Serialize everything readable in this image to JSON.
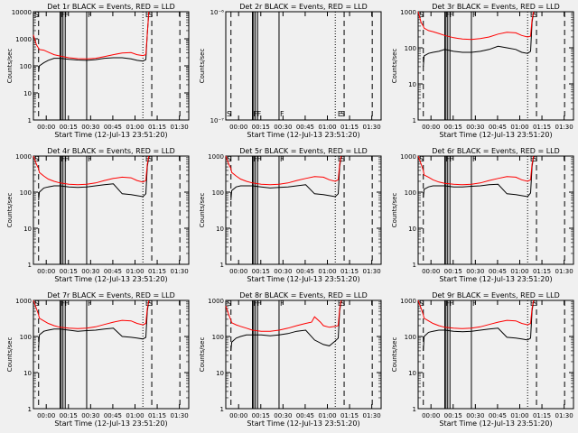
{
  "chart_data": {
    "type": "line",
    "ylabel": "Counts/sec",
    "xlabel": "Start Time (12-Jul-13 23:51:20)",
    "x_ticks": [
      "00:00",
      "00:15",
      "00:30",
      "00:45",
      "01:00",
      "01:15",
      "01:30"
    ],
    "x_tick_minutes": [
      8.67,
      23.67,
      38.67,
      53.67,
      68.67,
      83.67,
      98.67
    ],
    "x_range_minutes": [
      0,
      105
    ],
    "y_scale": "log",
    "series_colors": {
      "events": "#000000",
      "lld": "#ff0000"
    },
    "markers": {
      "dashed": [
        3.5,
        80,
        99
      ],
      "dotted": [
        74
      ],
      "solid": [
        18,
        18.8,
        20,
        21.5,
        36
      ],
      "flags": [
        {
          "x": 0,
          "text": "S"
        },
        {
          "x": 18,
          "text": "F"
        },
        {
          "x": 20.5,
          "text": "F"
        },
        {
          "x": 36,
          "text": "F"
        },
        {
          "x": 75,
          "text": "E"
        },
        {
          "x": 77,
          "text": "S"
        }
      ]
    },
    "panels": [
      {
        "title": "Det 1r BLACK = Events, RED = LLD",
        "ylim": [
          1,
          10000
        ],
        "y_ticks": [
          1,
          10,
          100,
          1000,
          10000
        ],
        "y_tick_labels": [
          "1",
          "10",
          "100",
          "1000",
          "10000"
        ],
        "series": [
          {
            "name": "Events",
            "color": "#000000",
            "x": [
              3.5,
              4,
              7,
              10,
              14,
              18,
              24,
              30,
              36,
              42,
              48,
              54,
              60,
              66,
              70,
              74,
              76,
              77,
              78
            ],
            "y": [
              60,
              100,
              130,
              160,
              190,
              190,
              175,
              165,
              160,
              170,
              190,
              200,
              200,
              180,
              160,
              150,
              170,
              1500,
              10000
            ]
          },
          {
            "name": "LLD",
            "color": "#ff0000",
            "x": [
              0,
              2,
              3.5,
              4,
              7,
              10,
              14,
              18,
              24,
              30,
              36,
              42,
              48,
              54,
              60,
              66,
              70,
              74,
              76,
              77,
              78
            ],
            "y": [
              1400,
              600,
              450,
              400,
              380,
              320,
              260,
              230,
              200,
              185,
              180,
              190,
              220,
              260,
              300,
              310,
              260,
              240,
              260,
              1500,
              10000
            ]
          }
        ]
      },
      {
        "title": "Det 2r BLACK = Events, RED = LLD",
        "ylim": [
          1e-07,
          1e-06
        ],
        "y_ticks": [
          1e-07,
          1e-06
        ],
        "y_tick_labels": [
          "10⁻⁷",
          "10⁻⁶"
        ],
        "series": []
      },
      {
        "title": "Det 3r BLACK = Events, RED = LLD",
        "ylim": [
          1,
          1000
        ],
        "y_ticks": [
          1,
          10,
          100,
          1000
        ],
        "y_tick_labels": [
          "1",
          "10",
          "100",
          "1000"
        ],
        "series": [
          {
            "name": "Events",
            "color": "#000000",
            "x": [
              3.5,
              4,
              7,
              10,
              14,
              18,
              24,
              30,
              36,
              42,
              48,
              54,
              60,
              66,
              70,
              74,
              76,
              77,
              78
            ],
            "y": [
              30,
              60,
              70,
              75,
              80,
              90,
              80,
              75,
              75,
              80,
              90,
              110,
              100,
              90,
              75,
              70,
              80,
              500,
              1000
            ]
          },
          {
            "name": "LLD",
            "color": "#ff0000",
            "x": [
              0,
              2,
              3.5,
              4,
              7,
              10,
              14,
              18,
              24,
              30,
              36,
              42,
              48,
              54,
              60,
              66,
              70,
              74,
              76,
              77,
              78
            ],
            "y": [
              1000,
              500,
              400,
              350,
              300,
              280,
              250,
              220,
              190,
              175,
              170,
              180,
              200,
              240,
              270,
              260,
              220,
              200,
              210,
              600,
              1000
            ]
          }
        ]
      },
      {
        "title": "Det 4r BLACK = Events, RED = LLD",
        "ylim": [
          1,
          1000
        ],
        "y_ticks": [
          1,
          10,
          100,
          1000
        ],
        "y_tick_labels": [
          "1",
          "10",
          "100",
          "1000"
        ],
        "series": [
          {
            "name": "Events",
            "color": "#000000",
            "x": [
              3.5,
              4,
              7,
              10,
              14,
              18,
              24,
              30,
              36,
              42,
              48,
              54,
              60,
              66,
              70,
              74,
              76,
              77,
              78
            ],
            "y": [
              60,
              100,
              130,
              140,
              150,
              150,
              140,
              135,
              140,
              150,
              160,
              170,
              90,
              85,
              80,
              75,
              90,
              500,
              1000
            ]
          },
          {
            "name": "LLD",
            "color": "#ff0000",
            "x": [
              0,
              2,
              3.5,
              4,
              7,
              10,
              14,
              18,
              24,
              30,
              36,
              42,
              48,
              54,
              60,
              66,
              70,
              74,
              76,
              77,
              78
            ],
            "y": [
              1000,
              600,
              450,
              350,
              280,
              230,
              200,
              180,
              165,
              160,
              165,
              180,
              210,
              240,
              260,
              250,
              210,
              190,
              210,
              600,
              1000
            ]
          }
        ]
      },
      {
        "title": "Det 5r BLACK = Events, RED = LLD",
        "ylim": [
          1,
          1000
        ],
        "y_ticks": [
          1,
          10,
          100,
          1000
        ],
        "y_tick_labels": [
          "1",
          "10",
          "100",
          "1000"
        ],
        "series": [
          {
            "name": "Events",
            "color": "#000000",
            "x": [
              3.5,
              4,
              7,
              10,
              14,
              18,
              24,
              30,
              36,
              42,
              48,
              54,
              60,
              66,
              70,
              74,
              76,
              77,
              78
            ],
            "y": [
              60,
              110,
              140,
              150,
              150,
              150,
              140,
              130,
              135,
              140,
              150,
              160,
              90,
              85,
              80,
              75,
              90,
              500,
              1000
            ]
          },
          {
            "name": "LLD",
            "color": "#ff0000",
            "x": [
              0,
              2,
              3.5,
              4,
              7,
              10,
              14,
              18,
              24,
              30,
              36,
              42,
              48,
              54,
              60,
              66,
              70,
              74,
              76,
              77,
              78
            ],
            "y": [
              1000,
              600,
              450,
              350,
              280,
              230,
              200,
              180,
              165,
              160,
              165,
              180,
              210,
              240,
              270,
              260,
              220,
              200,
              220,
              600,
              1000
            ]
          }
        ]
      },
      {
        "title": "Det 6r BLACK = Events, RED = LLD",
        "ylim": [
          1,
          1000
        ],
        "y_ticks": [
          1,
          10,
          100,
          1000
        ],
        "y_tick_labels": [
          "1",
          "10",
          "100",
          "1000"
        ],
        "series": [
          {
            "name": "Events",
            "color": "#000000",
            "x": [
              3.5,
              4,
              7,
              10,
              14,
              18,
              24,
              30,
              36,
              42,
              48,
              54,
              60,
              66,
              70,
              74,
              76,
              77,
              78
            ],
            "y": [
              70,
              120,
              140,
              150,
              150,
              150,
              140,
              140,
              145,
              150,
              160,
              165,
              90,
              85,
              80,
              75,
              95,
              500,
              1000
            ]
          },
          {
            "name": "LLD",
            "color": "#ff0000",
            "x": [
              0,
              2,
              3.5,
              4,
              7,
              10,
              14,
              18,
              24,
              30,
              36,
              42,
              48,
              54,
              60,
              66,
              70,
              74,
              76,
              77,
              78
            ],
            "y": [
              1000,
              600,
              400,
              300,
              260,
              220,
              190,
              175,
              165,
              160,
              165,
              180,
              210,
              240,
              270,
              260,
              220,
              200,
              220,
              600,
              1000
            ]
          }
        ]
      },
      {
        "title": "Det 7r BLACK = Events, RED = LLD",
        "ylim": [
          1,
          1000
        ],
        "y_ticks": [
          1,
          10,
          100,
          1000
        ],
        "y_tick_labels": [
          "1",
          "10",
          "100",
          "1000"
        ],
        "series": [
          {
            "name": "Events",
            "color": "#000000",
            "x": [
              3.5,
              4,
              7,
              10,
              14,
              18,
              24,
              30,
              36,
              42,
              48,
              54,
              60,
              66,
              70,
              74,
              76,
              77,
              78
            ],
            "y": [
              50,
              110,
              140,
              150,
              160,
              160,
              150,
              140,
              145,
              150,
              160,
              170,
              100,
              95,
              90,
              85,
              95,
              500,
              1000
            ]
          },
          {
            "name": "LLD",
            "color": "#ff0000",
            "x": [
              0,
              2,
              3.5,
              4,
              7,
              10,
              14,
              18,
              24,
              30,
              36,
              42,
              48,
              54,
              60,
              66,
              70,
              74,
              76,
              77,
              78
            ],
            "y": [
              1000,
              600,
              400,
              320,
              270,
              230,
              200,
              180,
              170,
              165,
              170,
              185,
              215,
              250,
              280,
              270,
              230,
              210,
              230,
              600,
              1000
            ]
          }
        ]
      },
      {
        "title": "Det 8r BLACK = Events, RED = LLD",
        "ylim": [
          1,
          1000
        ],
        "y_ticks": [
          1,
          10,
          100,
          1000
        ],
        "y_tick_labels": [
          "1",
          "10",
          "100",
          "1000"
        ],
        "series": [
          {
            "name": "Events",
            "color": "#000000",
            "x": [
              3.5,
              4,
              7,
              10,
              14,
              18,
              24,
              30,
              36,
              42,
              48,
              54,
              60,
              66,
              70,
              74,
              76,
              77,
              78
            ],
            "y": [
              40,
              70,
              90,
              100,
              110,
              110,
              110,
              105,
              110,
              120,
              140,
              150,
              80,
              60,
              55,
              75,
              90,
              500,
              1000
            ]
          },
          {
            "name": "LLD",
            "color": "#ff0000",
            "x": [
              0,
              2,
              3.5,
              4,
              7,
              10,
              14,
              18,
              24,
              30,
              36,
              42,
              48,
              54,
              58,
              60,
              64,
              66,
              70,
              74,
              76,
              77,
              78
            ],
            "y": [
              700,
              400,
              280,
              240,
              210,
              190,
              170,
              150,
              140,
              140,
              150,
              170,
              200,
              230,
              250,
              350,
              250,
              200,
              180,
              190,
              200,
              600,
              1000
            ]
          }
        ]
      },
      {
        "title": "Det 9r BLACK = Events, RED = LLD",
        "ylim": [
          1,
          1000
        ],
        "y_ticks": [
          1,
          10,
          100,
          1000
        ],
        "y_tick_labels": [
          "1",
          "10",
          "100",
          "1000"
        ],
        "series": [
          {
            "name": "Events",
            "color": "#000000",
            "x": [
              3.5,
              4,
              7,
              10,
              14,
              18,
              24,
              30,
              36,
              42,
              48,
              54,
              60,
              66,
              70,
              74,
              76,
              77,
              78
            ],
            "y": [
              40,
              100,
              130,
              140,
              150,
              150,
              140,
              135,
              140,
              150,
              160,
              170,
              95,
              90,
              85,
              80,
              90,
              500,
              1000
            ]
          },
          {
            "name": "LLD",
            "color": "#ff0000",
            "x": [
              0,
              2,
              3.5,
              4,
              7,
              10,
              14,
              18,
              24,
              30,
              36,
              42,
              48,
              54,
              60,
              66,
              70,
              74,
              76,
              77,
              78
            ],
            "y": [
              1000,
              600,
              400,
              320,
              270,
              230,
              200,
              180,
              170,
              165,
              170,
              185,
              215,
              250,
              280,
              270,
              230,
              210,
              230,
              600,
              1000
            ]
          }
        ]
      }
    ]
  }
}
